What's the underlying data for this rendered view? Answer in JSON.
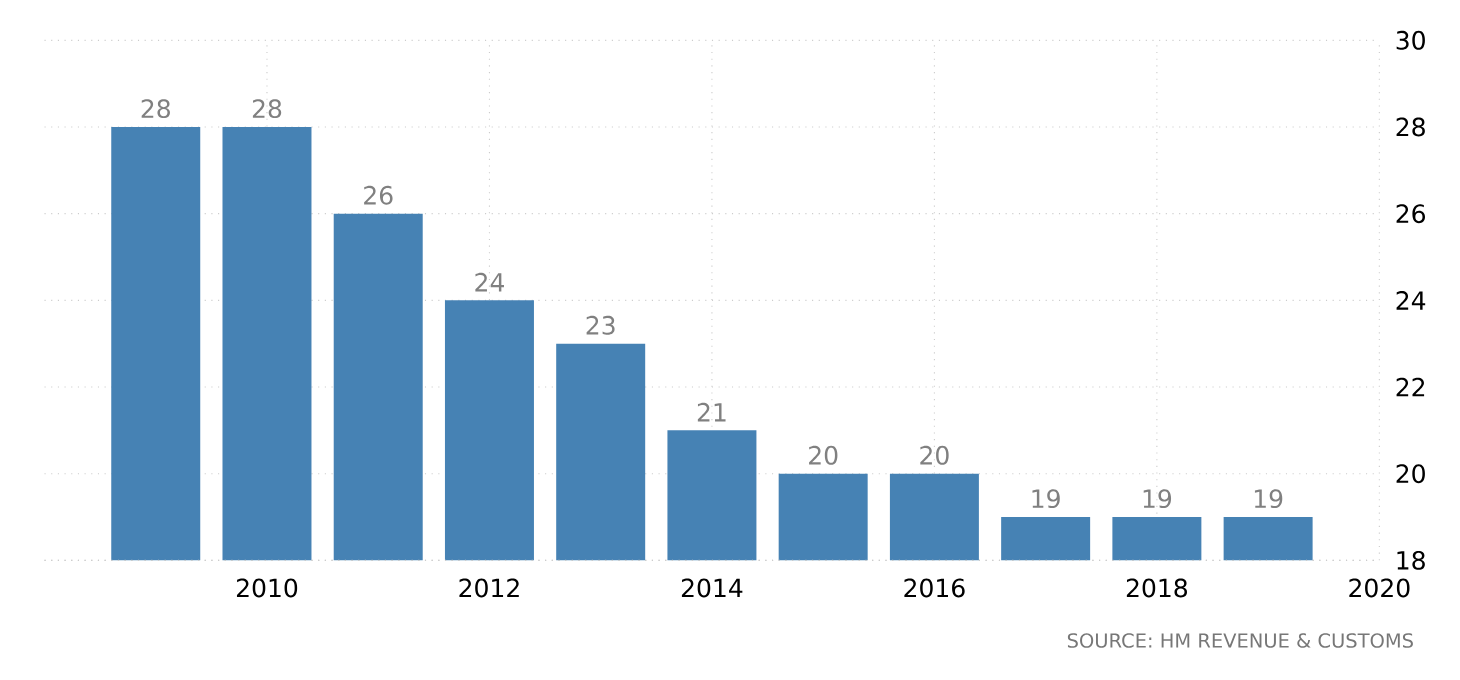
{
  "chart_data": {
    "type": "bar",
    "x": [
      2009,
      2010,
      2011,
      2012,
      2013,
      2014,
      2015,
      2016,
      2017,
      2018,
      2019
    ],
    "values": [
      28,
      28,
      26,
      24,
      23,
      21,
      20,
      20,
      19,
      19,
      19
    ],
    "color": "#4682b4",
    "xlim": [
      2008,
      2020
    ],
    "xticks": [
      2010,
      2012,
      2014,
      2016,
      2018,
      2020
    ],
    "ylim": [
      18,
      30
    ],
    "yticks": [
      18,
      20,
      22,
      24,
      26,
      28,
      30
    ],
    "grid": true,
    "data_labels": true,
    "annotations": [
      "SOURCE: HM REVENUE & CUSTOMS"
    ]
  }
}
